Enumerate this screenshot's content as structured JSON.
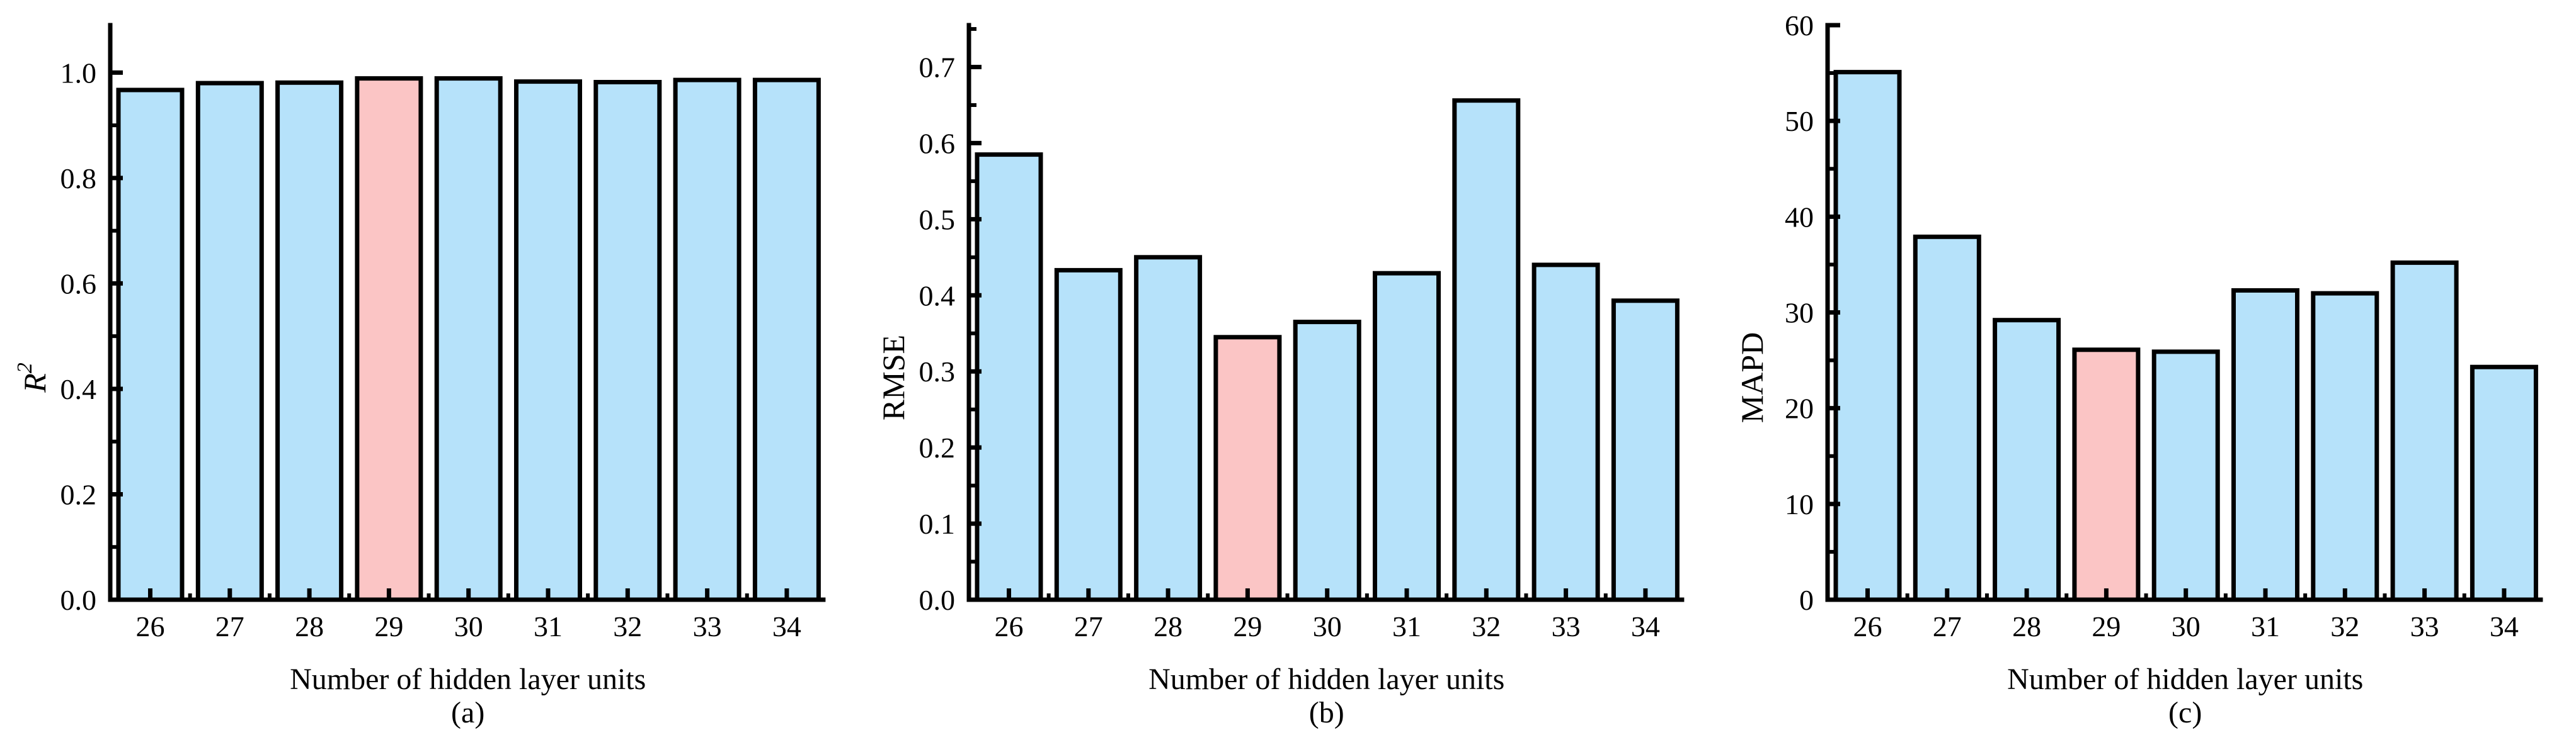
{
  "figure": {
    "background": "#ffffff",
    "text_color": "#000000",
    "axis_color": "#000000"
  },
  "chart_data": [
    {
      "type": "bar",
      "panel_label": "(a)",
      "categories": [
        "26",
        "27",
        "28",
        "29",
        "30",
        "31",
        "32",
        "33",
        "34"
      ],
      "values": [
        0.967,
        0.98,
        0.981,
        0.989,
        0.989,
        0.983,
        0.982,
        0.986,
        0.986
      ],
      "title": "",
      "xlabel": "Number of hidden layer units",
      "ylabel_main": "R",
      "ylabel_sup": "2",
      "ylabel_italic": true,
      "ylim": [
        0,
        1.09
      ],
      "yticks": [
        0.0,
        0.2,
        0.4,
        0.6,
        0.8,
        1.0
      ],
      "yticklabels": [
        "0.0",
        "0.2",
        "0.4",
        "0.6",
        "0.8",
        "1.0"
      ],
      "yminor_step": 0.1,
      "grid": false,
      "legend": "none",
      "highlight_index": 3,
      "bar_color": "#b6e2fa",
      "highlight_color": "#fbc5c5",
      "edge_color": "#000000"
    },
    {
      "type": "bar",
      "panel_label": "(b)",
      "categories": [
        "26",
        "27",
        "28",
        "29",
        "30",
        "31",
        "32",
        "33",
        "34"
      ],
      "values": [
        0.585,
        0.433,
        0.45,
        0.345,
        0.365,
        0.429,
        0.656,
        0.44,
        0.393
      ],
      "title": "",
      "xlabel": "Number of hidden layer units",
      "ylabel_main": "RMSE",
      "ylabel_sup": "",
      "ylabel_italic": false,
      "ylim": [
        0,
        0.755
      ],
      "yticks": [
        0.0,
        0.1,
        0.2,
        0.3,
        0.4,
        0.5,
        0.6,
        0.7
      ],
      "yticklabels": [
        "0.0",
        "0.1",
        "0.2",
        "0.3",
        "0.4",
        "0.5",
        "0.6",
        "0.7"
      ],
      "yminor_step": 0.05,
      "grid": false,
      "legend": "none",
      "highlight_index": 3,
      "bar_color": "#b6e2fa",
      "highlight_color": "#fbc5c5",
      "edge_color": "#000000"
    },
    {
      "type": "bar",
      "panel_label": "(c)",
      "categories": [
        "26",
        "27",
        "28",
        "29",
        "30",
        "31",
        "32",
        "33",
        "34"
      ],
      "values": [
        55.1,
        37.9,
        29.2,
        26.1,
        25.9,
        32.3,
        32.0,
        35.2,
        24.3
      ],
      "title": "",
      "xlabel": "Number of hidden layer units",
      "ylabel_main": "MAPD",
      "ylabel_sup": "",
      "ylabel_italic": false,
      "ylim": [
        0,
        60
      ],
      "yticks": [
        0,
        10,
        20,
        30,
        40,
        50,
        60
      ],
      "yticklabels": [
        "0",
        "10",
        "20",
        "30",
        "40",
        "50",
        "60"
      ],
      "yminor_step": 5,
      "grid": false,
      "legend": "none",
      "highlight_index": 3,
      "bar_color": "#b6e2fa",
      "highlight_color": "#fbc5c5",
      "edge_color": "#000000"
    }
  ]
}
